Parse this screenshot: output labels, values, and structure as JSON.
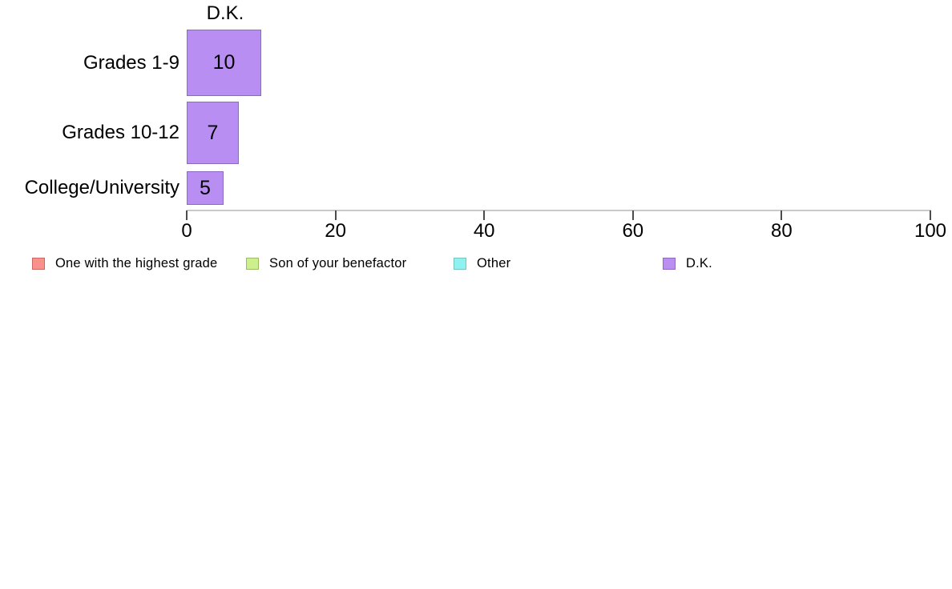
{
  "chart_data": {
    "type": "bar",
    "orientation": "horizontal",
    "title": "D.K.",
    "categories": [
      "Grades 1-9",
      "Grades 10-12",
      "College/University"
    ],
    "values": [
      10,
      7,
      5
    ],
    "value_labels": [
      "10",
      "7",
      "5"
    ],
    "bar_color": "#b88ef2",
    "bar_border_color": "#8f68c0",
    "xlabel": "",
    "ylabel": "",
    "xlim": [
      0,
      100
    ],
    "xticks": [
      0,
      20,
      40,
      60,
      80,
      100
    ],
    "grid": false,
    "axis_line_color": "#c9c9c9",
    "legend_position": "bottom-left",
    "legend": [
      {
        "label": "One with the highest grade",
        "color": "#f9928a",
        "border": "#cc6660"
      },
      {
        "label": "Son of your benefactor",
        "color": "#ccf18c",
        "border": "#9aba65"
      },
      {
        "label": "Other",
        "color": "#90f2f0",
        "border": "#74c4c2"
      },
      {
        "label": "D.K.",
        "color": "#bb8ef2",
        "border": "#8f68c0"
      }
    ]
  }
}
